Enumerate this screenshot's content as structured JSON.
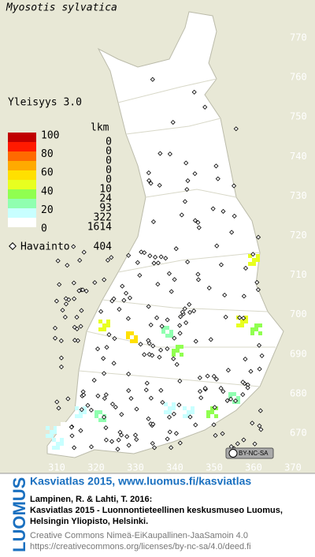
{
  "title": "Myosotis sylvatica",
  "frequency_label": "Yleisyys 3.0",
  "legend": {
    "count_header": "lkm",
    "levels": [
      100,
      80,
      60,
      40,
      20,
      0
    ],
    "colors": [
      "#c00000",
      "#ff1a00",
      "#ff6a00",
      "#ffaa00",
      "#ffe000",
      "#e8ff20",
      "#90ff50",
      "#90ffb0",
      "#c8ffff",
      "#ffffff"
    ],
    "counts": [
      0,
      0,
      0,
      0,
      0,
      10,
      24,
      93,
      322,
      1614
    ],
    "observation_label": "Havainto",
    "observation_count": 404
  },
  "y_axis_labels": [
    770,
    760,
    750,
    740,
    730,
    720,
    710,
    700,
    690,
    680,
    670
  ],
  "x_axis_labels": [
    310,
    320,
    330,
    340,
    350,
    360,
    370
  ],
  "cc_badge": "BY-NC-SA",
  "footer": {
    "brand": "LUOMUS",
    "headline": "Kasviatlas 2015, www.luomus.fi/kasviatlas",
    "citation": [
      "Lampinen, R. & Lahti, T. 2016:",
      "Kasviatlas 2015 - Luonnontieteellinen keskusmuseo Luomus,",
      "Helsingin Yliopisto, Helsinki."
    ],
    "license": [
      "Creative Commons Nimeä-EiKaupallinen-JaaSamoin 4.0",
      "https://creativecommons.org/licenses/by-nc-sa/4.0/deed.fi"
    ]
  }
}
